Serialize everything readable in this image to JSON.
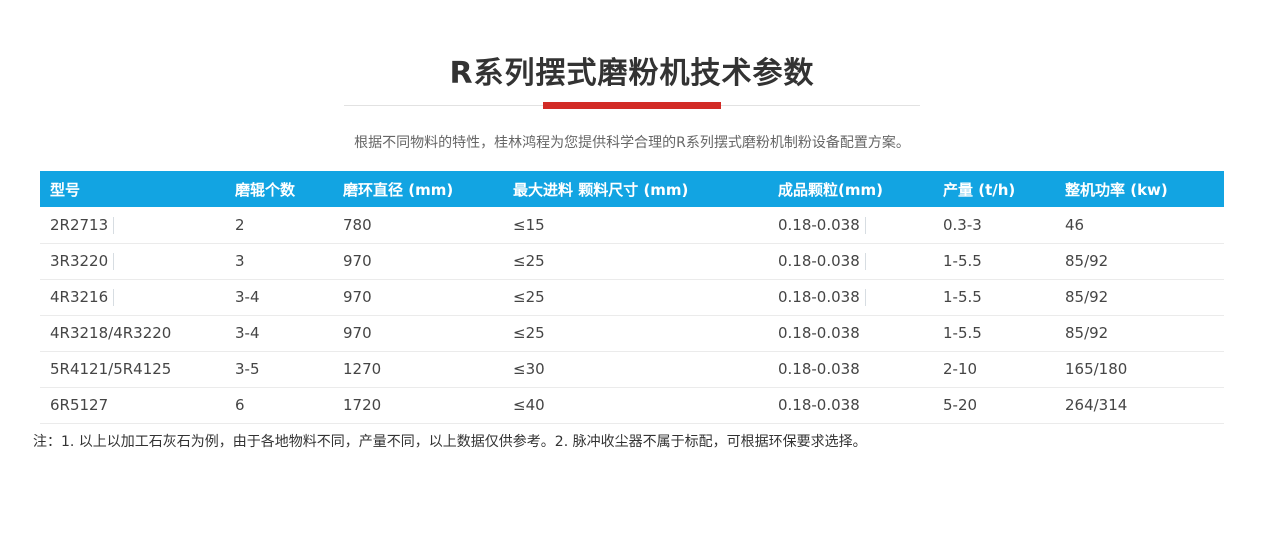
{
  "page": {
    "title": "R系列摆式磨粉机技术参数",
    "subtitle": "根据不同物料的特性，桂林鸿程为您提供科学合理的R系列摆式磨粉机制粉设备配置方案。",
    "note": "注：1. 以上以加工石灰石为例，由于各地物料不同，产量不同，以上数据仅供参考。2. 脉冲收尘器不属于标配，可根据环保要求选择。"
  },
  "colors": {
    "accent_red": "#d22b26",
    "header_blue": "#12a4e2",
    "title_text": "#333333",
    "subtitle_text": "#666666",
    "body_text": "#454545",
    "row_border": "#ebebeb"
  },
  "table": {
    "columns": [
      "型号",
      "磨辊个数",
      "磨环直径 (mm)",
      "最大进料 颗料尺寸 (mm)",
      "成品颗粒(mm)",
      "产量 (t/h)",
      "整机功率 (kw)"
    ],
    "rows": [
      [
        "2R2713",
        "2",
        "780",
        "≤15",
        "0.18-0.038",
        "0.3-3",
        "46"
      ],
      [
        "3R3220",
        "3",
        "970",
        "≤25",
        "0.18-0.038",
        "1-5.5",
        "85/92"
      ],
      [
        "4R3216",
        "3-4",
        "970",
        "≤25",
        "0.18-0.038",
        "1-5.5",
        "85/92"
      ],
      [
        "4R3218/4R3220",
        "3-4",
        "970",
        "≤25",
        "0.18-0.038",
        "1-5.5",
        "85/92"
      ],
      [
        "5R4121/5R4125",
        "3-5",
        "1270",
        "≤30",
        "0.18-0.038",
        "2-10",
        "165/180"
      ],
      [
        "6R5127",
        "6",
        "1720",
        "≤40",
        "0.18-0.038",
        "5-20",
        "264/314"
      ]
    ]
  }
}
